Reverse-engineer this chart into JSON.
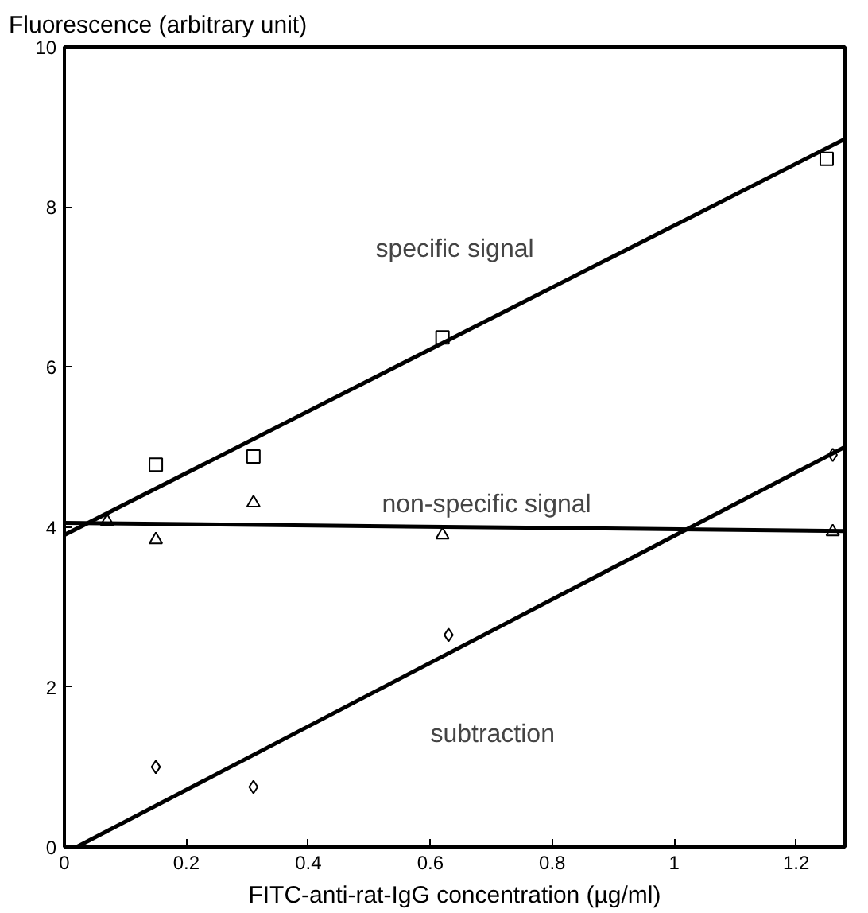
{
  "chart_data": {
    "type": "scatter",
    "ylabel": "Fluorescence (arbitrary unit)",
    "xlabel": "FITC-anti-rat-IgG concentration (µg/ml)",
    "xlim": [
      0,
      1.28
    ],
    "ylim": [
      0,
      10
    ],
    "xticks": [
      0,
      0.2,
      0.4,
      0.6,
      0.8,
      1,
      1.2
    ],
    "yticks": [
      0,
      2,
      4,
      6,
      8,
      10
    ],
    "grid": false,
    "series": [
      {
        "marker": "square",
        "color": "#000000",
        "x": [
          0.15,
          0.31,
          0.62,
          1.25
        ],
        "values": [
          4.78,
          4.88,
          6.37,
          8.6
        ]
      },
      {
        "marker": "triangle",
        "color": "#000000",
        "x": [
          0.07,
          0.15,
          0.31,
          0.62,
          1.26
        ],
        "values": [
          4.07,
          3.84,
          4.3,
          3.9,
          3.94
        ]
      },
      {
        "marker": "diamond",
        "color": "#000000",
        "x": [
          0.15,
          0.31,
          0.63,
          1.26
        ],
        "values": [
          1.0,
          0.75,
          2.65,
          4.9
        ]
      },
      {
        "type": "line",
        "name": "specific signal",
        "color": "#000000",
        "x": [
          0,
          1.28
        ],
        "values": [
          3.9,
          8.85
        ]
      },
      {
        "type": "line",
        "name": "non-specific signal",
        "color": "#000000",
        "x": [
          0,
          1.28
        ],
        "values": [
          4.05,
          3.95
        ]
      },
      {
        "type": "line",
        "name": "subtraction",
        "color": "#000000",
        "x": [
          0.02,
          1.28
        ],
        "values": [
          0,
          5.0
        ]
      }
    ]
  }
}
